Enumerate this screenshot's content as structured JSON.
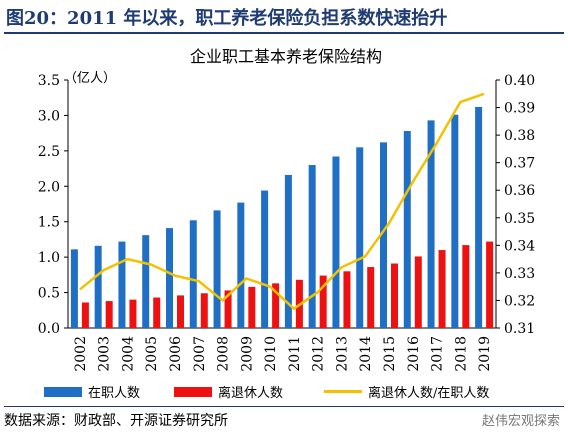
{
  "figure": {
    "title": "图20：2011 年以来，职工养老保险负担系数快速抬升",
    "source": "数据来源：财政部、开源证券研究所",
    "watermark": "赵伟宏观探索"
  },
  "colors": {
    "bar1": "#1f6fc5",
    "bar2": "#ee1111",
    "line": "#f2c200",
    "title": "#1f3b73"
  },
  "chart_data": {
    "type": "bar",
    "title": "企业职工基本养老保险结构",
    "ylabel_left": "（亿人）",
    "categories": [
      "2002",
      "2003",
      "2004",
      "2005",
      "2006",
      "2007",
      "2008",
      "2009",
      "2010",
      "2011",
      "2012",
      "2013",
      "2014",
      "2015",
      "2016",
      "2017",
      "2018",
      "2019"
    ],
    "ylim_left": [
      0,
      3.5
    ],
    "yticks_left": [
      "0.0",
      "0.5",
      "1.0",
      "1.5",
      "2.0",
      "2.5",
      "3.0",
      "3.5"
    ],
    "ylim_right": [
      0.31,
      0.4
    ],
    "yticks_right": [
      "0.31",
      "0.32",
      "0.33",
      "0.34",
      "0.35",
      "0.36",
      "0.37",
      "0.38",
      "0.39",
      "0.40"
    ],
    "grid": false,
    "legend_position": "bottom",
    "series": [
      {
        "name": "在职人数",
        "type": "bar",
        "axis": "left",
        "values": [
          1.11,
          1.16,
          1.22,
          1.31,
          1.41,
          1.52,
          1.66,
          1.77,
          1.94,
          2.16,
          2.3,
          2.42,
          2.55,
          2.62,
          2.78,
          2.93,
          3.01,
          3.12
        ]
      },
      {
        "name": "离退休人数",
        "type": "bar",
        "axis": "left",
        "values": [
          0.36,
          0.38,
          0.4,
          0.43,
          0.46,
          0.49,
          0.53,
          0.58,
          0.63,
          0.68,
          0.74,
          0.8,
          0.86,
          0.91,
          1.01,
          1.1,
          1.17,
          1.22
        ]
      },
      {
        "name": "离退休人数/在职人数",
        "type": "line",
        "axis": "right",
        "values": [
          0.324,
          0.331,
          0.335,
          0.333,
          0.329,
          0.327,
          0.32,
          0.328,
          0.325,
          0.317,
          0.323,
          0.332,
          0.336,
          0.348,
          0.363,
          0.377,
          0.392,
          0.395
        ]
      }
    ]
  }
}
